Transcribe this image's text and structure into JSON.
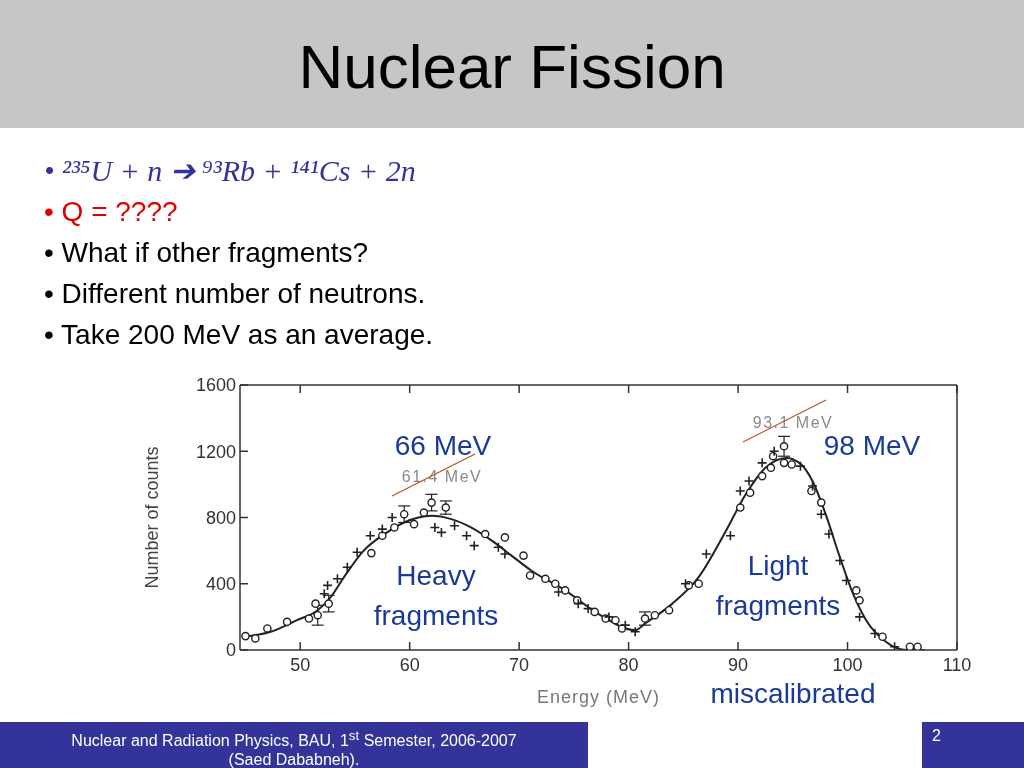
{
  "chart_data": {
    "type": "scatter",
    "title": "Nuclear Fission",
    "xlabel": "Energy (MeV)",
    "ylabel": "Number of counts",
    "xlim": [
      44.5,
      110
    ],
    "ylim": [
      0,
      1600
    ],
    "xticks": [
      50,
      60,
      70,
      80,
      90,
      100,
      110
    ],
    "yticks": [
      0,
      400,
      800,
      1200,
      1600
    ],
    "series": [
      {
        "type": "line",
        "color": "#222222",
        "marker": "none",
        "x": [
          44.8,
          47.3,
          49.7,
          51.6,
          52.8,
          54,
          55.8,
          57.7,
          59.5,
          62,
          63.8,
          65.6,
          67.5,
          69.3,
          71.1,
          74.2,
          77.2,
          80.6,
          81.5,
          84,
          86.4,
          88.9,
          90.7,
          92.5,
          94.4,
          95.6,
          96.8,
          98,
          99.3,
          100.5,
          101.7,
          103.5,
          105.4,
          107
        ],
        "values": [
          80,
          110,
          180,
          240,
          320,
          440,
          600,
          700,
          770,
          810,
          790,
          740,
          660,
          570,
          480,
          360,
          220,
          120,
          160,
          280,
          440,
          720,
          940,
          1100,
          1160,
          1130,
          1020,
          820,
          560,
          340,
          180,
          50,
          0,
          0
        ]
      },
      {
        "color": "#222222",
        "marker": "circle",
        "x": [
          45,
          45.9,
          47,
          48.8,
          50.8,
          51.4,
          51.6,
          52.6,
          56.5,
          57.5,
          58.6,
          59.5,
          60.4,
          61.3,
          62,
          63.3,
          66.9,
          68.7,
          70.4,
          71,
          72.4,
          73.3,
          74.2,
          75.3,
          76.9,
          77.9,
          78.8,
          79.4,
          81.5,
          82.4,
          83.7,
          85.5,
          86.4,
          90.2,
          91.1,
          92.2,
          93,
          93.2,
          94.2,
          94.2,
          94.9,
          96.7,
          97.6,
          100.8,
          101.1,
          103.2,
          105.7,
          106.4
        ],
        "values": [
          84,
          70,
          130,
          170,
          190,
          280,
          210,
          280,
          585,
          690,
          740,
          820,
          760,
          830,
          890,
          860,
          700,
          680,
          570,
          450,
          430,
          400,
          360,
          300,
          230,
          190,
          180,
          130,
          190,
          210,
          240,
          390,
          400,
          860,
          950,
          1050,
          1100,
          1170,
          1230,
          1130,
          1120,
          960,
          890,
          360,
          300,
          80,
          20,
          20
        ],
        "errors": [
          null,
          null,
          null,
          null,
          null,
          null,
          60,
          50,
          null,
          null,
          null,
          50,
          null,
          null,
          50,
          40,
          null,
          null,
          null,
          null,
          null,
          null,
          null,
          null,
          null,
          null,
          null,
          null,
          40,
          null,
          null,
          null,
          null,
          null,
          null,
          null,
          null,
          null,
          60,
          null,
          null,
          null,
          null,
          null,
          null,
          null,
          null,
          null
        ]
      },
      {
        "color": "#222222",
        "marker": "cross",
        "x": [
          52.2,
          52.5,
          53.4,
          54.3,
          55.2,
          56.4,
          57.5,
          58.4,
          62.3,
          62.9,
          64.1,
          65.2,
          65.9,
          68.1,
          68.7,
          73.6,
          75.4,
          76.3,
          78.2,
          79.7,
          80.6,
          85.2,
          87.1,
          89.3,
          90.2,
          91,
          92.2,
          93.3,
          95.7,
          96.8,
          97.6,
          98.3,
          99.3,
          99.9,
          101.1,
          102.5,
          104.3
        ],
        "values": [
          340,
          390,
          430,
          500,
          590,
          690,
          730,
          800,
          740,
          710,
          750,
          690,
          630,
          620,
          580,
          350,
          280,
          250,
          200,
          150,
          110,
          400,
          580,
          690,
          960,
          1020,
          1130,
          1200,
          1110,
          990,
          820,
          700,
          540,
          420,
          200,
          100,
          20
        ]
      }
    ],
    "annotations": [
      "• ²³⁵U + n ➔ ⁹³Rb + ¹⁴¹Cs + 2n",
      "• Q = ????",
      "• What if other fragments?",
      "• Different number of neutrons.",
      "• Take 200 MeV as an average.",
      "61.4 MeV",
      "93.1 MeV",
      "66 MeV",
      "98 MeV",
      "Heavy fragments",
      "Light fragments",
      "miscalibrated",
      "Nuclear and Radiation Physics, BAU, 1$^{st}$ Semester, 2006-2007 (Saed Dababneh).",
      "2"
    ]
  }
}
